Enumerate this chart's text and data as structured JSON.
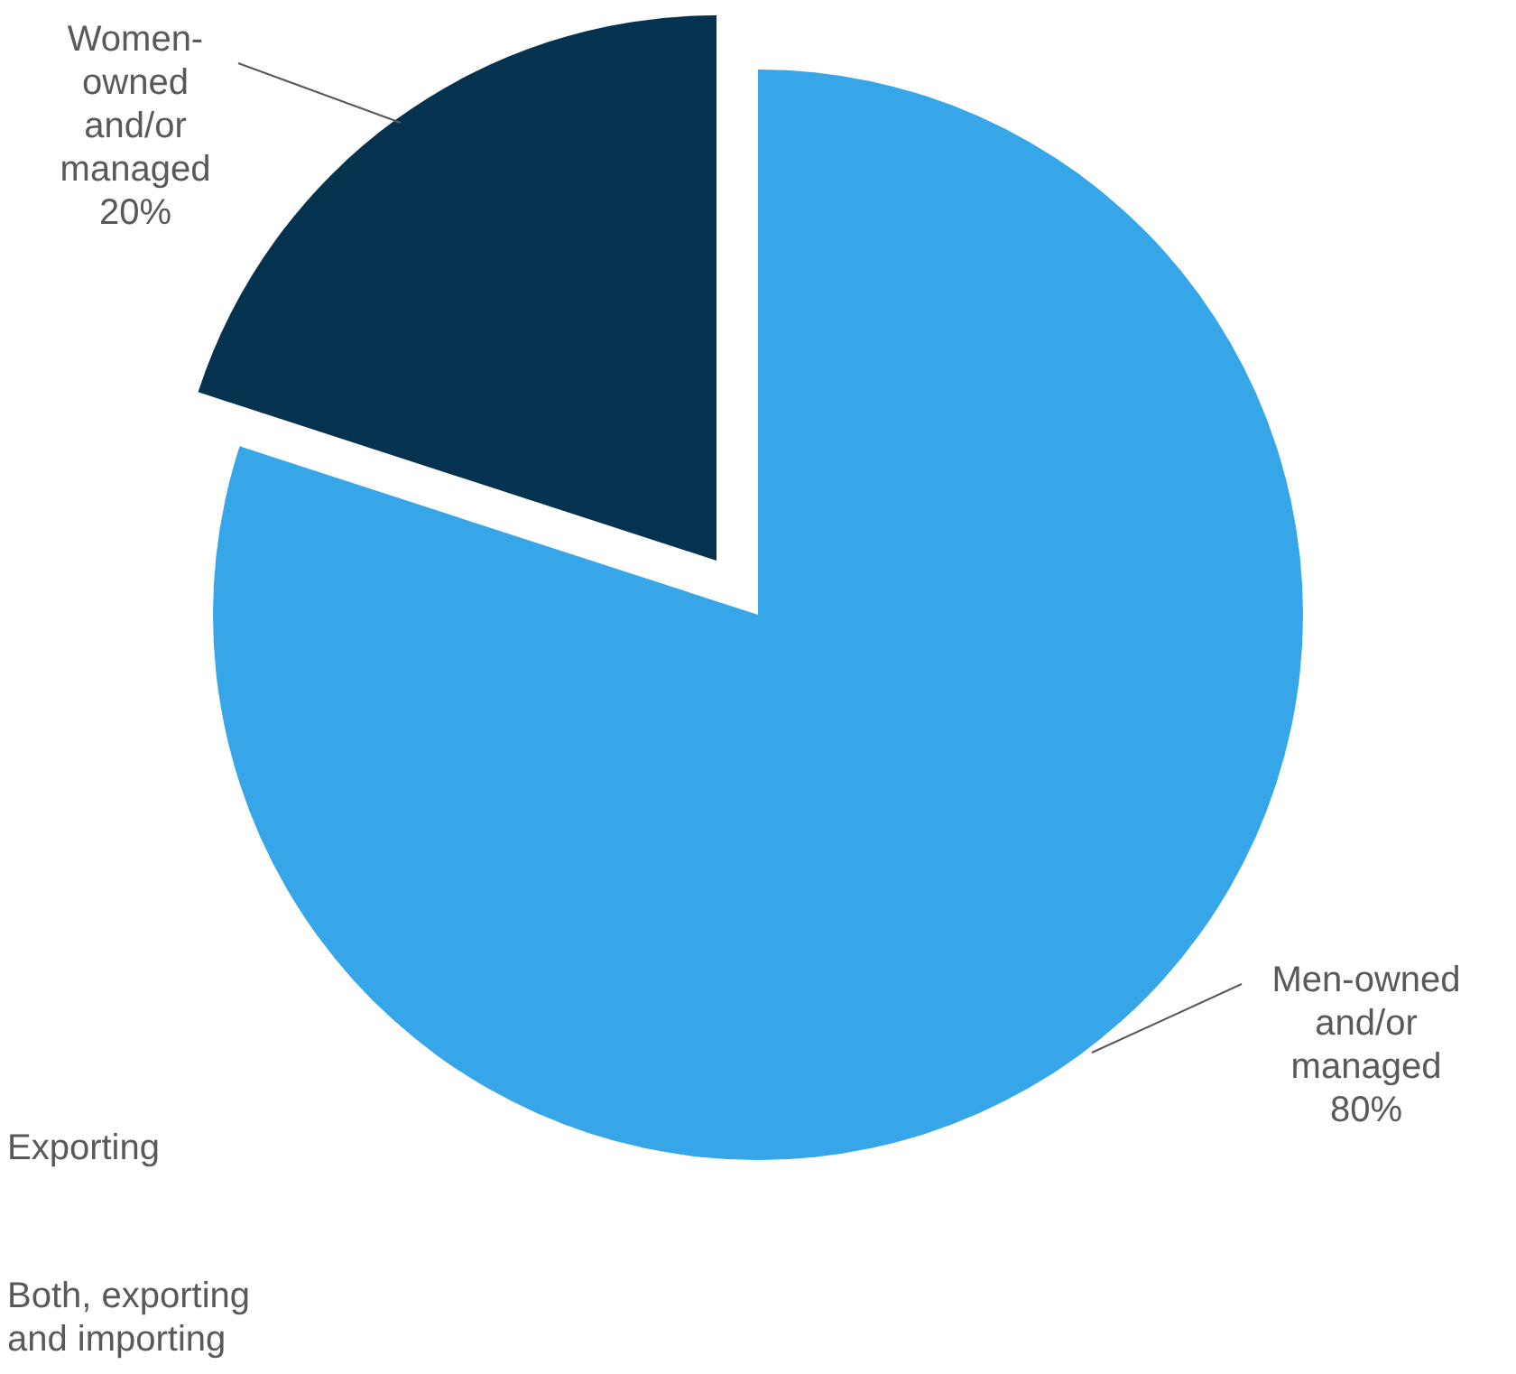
{
  "chart_data": {
    "type": "pie",
    "categories": [
      "Men-owned and/or managed",
      "Women-owned and/or managed"
    ],
    "values": [
      80,
      20
    ],
    "colors": [
      "#36a6e8",
      "#04324f"
    ],
    "value_labels": [
      "80%",
      "20%"
    ],
    "annotations": [
      "Exporting",
      "Both, exporting and importing"
    ]
  }
}
